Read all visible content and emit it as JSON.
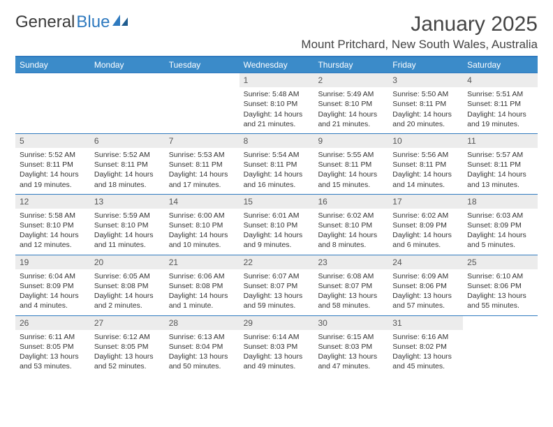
{
  "logo": {
    "part1": "General",
    "part2": "Blue"
  },
  "title": "January 2025",
  "location": "Mount Pritchard, New South Wales, Australia",
  "colors": {
    "header_bg": "#3b8bc9",
    "header_border": "#2f7abf",
    "daynum_bg": "#ececec",
    "text": "#333333",
    "logo_blue": "#2f7abf"
  },
  "weekdays": [
    "Sunday",
    "Monday",
    "Tuesday",
    "Wednesday",
    "Thursday",
    "Friday",
    "Saturday"
  ],
  "weeks": [
    [
      {
        "num": "",
        "lines": []
      },
      {
        "num": "",
        "lines": []
      },
      {
        "num": "",
        "lines": []
      },
      {
        "num": "1",
        "lines": [
          "Sunrise: 5:48 AM",
          "Sunset: 8:10 PM",
          "Daylight: 14 hours",
          "and 21 minutes."
        ]
      },
      {
        "num": "2",
        "lines": [
          "Sunrise: 5:49 AM",
          "Sunset: 8:10 PM",
          "Daylight: 14 hours",
          "and 21 minutes."
        ]
      },
      {
        "num": "3",
        "lines": [
          "Sunrise: 5:50 AM",
          "Sunset: 8:11 PM",
          "Daylight: 14 hours",
          "and 20 minutes."
        ]
      },
      {
        "num": "4",
        "lines": [
          "Sunrise: 5:51 AM",
          "Sunset: 8:11 PM",
          "Daylight: 14 hours",
          "and 19 minutes."
        ]
      }
    ],
    [
      {
        "num": "5",
        "lines": [
          "Sunrise: 5:52 AM",
          "Sunset: 8:11 PM",
          "Daylight: 14 hours",
          "and 19 minutes."
        ]
      },
      {
        "num": "6",
        "lines": [
          "Sunrise: 5:52 AM",
          "Sunset: 8:11 PM",
          "Daylight: 14 hours",
          "and 18 minutes."
        ]
      },
      {
        "num": "7",
        "lines": [
          "Sunrise: 5:53 AM",
          "Sunset: 8:11 PM",
          "Daylight: 14 hours",
          "and 17 minutes."
        ]
      },
      {
        "num": "8",
        "lines": [
          "Sunrise: 5:54 AM",
          "Sunset: 8:11 PM",
          "Daylight: 14 hours",
          "and 16 minutes."
        ]
      },
      {
        "num": "9",
        "lines": [
          "Sunrise: 5:55 AM",
          "Sunset: 8:11 PM",
          "Daylight: 14 hours",
          "and 15 minutes."
        ]
      },
      {
        "num": "10",
        "lines": [
          "Sunrise: 5:56 AM",
          "Sunset: 8:11 PM",
          "Daylight: 14 hours",
          "and 14 minutes."
        ]
      },
      {
        "num": "11",
        "lines": [
          "Sunrise: 5:57 AM",
          "Sunset: 8:11 PM",
          "Daylight: 14 hours",
          "and 13 minutes."
        ]
      }
    ],
    [
      {
        "num": "12",
        "lines": [
          "Sunrise: 5:58 AM",
          "Sunset: 8:10 PM",
          "Daylight: 14 hours",
          "and 12 minutes."
        ]
      },
      {
        "num": "13",
        "lines": [
          "Sunrise: 5:59 AM",
          "Sunset: 8:10 PM",
          "Daylight: 14 hours",
          "and 11 minutes."
        ]
      },
      {
        "num": "14",
        "lines": [
          "Sunrise: 6:00 AM",
          "Sunset: 8:10 PM",
          "Daylight: 14 hours",
          "and 10 minutes."
        ]
      },
      {
        "num": "15",
        "lines": [
          "Sunrise: 6:01 AM",
          "Sunset: 8:10 PM",
          "Daylight: 14 hours",
          "and 9 minutes."
        ]
      },
      {
        "num": "16",
        "lines": [
          "Sunrise: 6:02 AM",
          "Sunset: 8:10 PM",
          "Daylight: 14 hours",
          "and 8 minutes."
        ]
      },
      {
        "num": "17",
        "lines": [
          "Sunrise: 6:02 AM",
          "Sunset: 8:09 PM",
          "Daylight: 14 hours",
          "and 6 minutes."
        ]
      },
      {
        "num": "18",
        "lines": [
          "Sunrise: 6:03 AM",
          "Sunset: 8:09 PM",
          "Daylight: 14 hours",
          "and 5 minutes."
        ]
      }
    ],
    [
      {
        "num": "19",
        "lines": [
          "Sunrise: 6:04 AM",
          "Sunset: 8:09 PM",
          "Daylight: 14 hours",
          "and 4 minutes."
        ]
      },
      {
        "num": "20",
        "lines": [
          "Sunrise: 6:05 AM",
          "Sunset: 8:08 PM",
          "Daylight: 14 hours",
          "and 2 minutes."
        ]
      },
      {
        "num": "21",
        "lines": [
          "Sunrise: 6:06 AM",
          "Sunset: 8:08 PM",
          "Daylight: 14 hours",
          "and 1 minute."
        ]
      },
      {
        "num": "22",
        "lines": [
          "Sunrise: 6:07 AM",
          "Sunset: 8:07 PM",
          "Daylight: 13 hours",
          "and 59 minutes."
        ]
      },
      {
        "num": "23",
        "lines": [
          "Sunrise: 6:08 AM",
          "Sunset: 8:07 PM",
          "Daylight: 13 hours",
          "and 58 minutes."
        ]
      },
      {
        "num": "24",
        "lines": [
          "Sunrise: 6:09 AM",
          "Sunset: 8:06 PM",
          "Daylight: 13 hours",
          "and 57 minutes."
        ]
      },
      {
        "num": "25",
        "lines": [
          "Sunrise: 6:10 AM",
          "Sunset: 8:06 PM",
          "Daylight: 13 hours",
          "and 55 minutes."
        ]
      }
    ],
    [
      {
        "num": "26",
        "lines": [
          "Sunrise: 6:11 AM",
          "Sunset: 8:05 PM",
          "Daylight: 13 hours",
          "and 53 minutes."
        ]
      },
      {
        "num": "27",
        "lines": [
          "Sunrise: 6:12 AM",
          "Sunset: 8:05 PM",
          "Daylight: 13 hours",
          "and 52 minutes."
        ]
      },
      {
        "num": "28",
        "lines": [
          "Sunrise: 6:13 AM",
          "Sunset: 8:04 PM",
          "Daylight: 13 hours",
          "and 50 minutes."
        ]
      },
      {
        "num": "29",
        "lines": [
          "Sunrise: 6:14 AM",
          "Sunset: 8:03 PM",
          "Daylight: 13 hours",
          "and 49 minutes."
        ]
      },
      {
        "num": "30",
        "lines": [
          "Sunrise: 6:15 AM",
          "Sunset: 8:03 PM",
          "Daylight: 13 hours",
          "and 47 minutes."
        ]
      },
      {
        "num": "31",
        "lines": [
          "Sunrise: 6:16 AM",
          "Sunset: 8:02 PM",
          "Daylight: 13 hours",
          "and 45 minutes."
        ]
      },
      {
        "num": "",
        "lines": []
      }
    ]
  ]
}
